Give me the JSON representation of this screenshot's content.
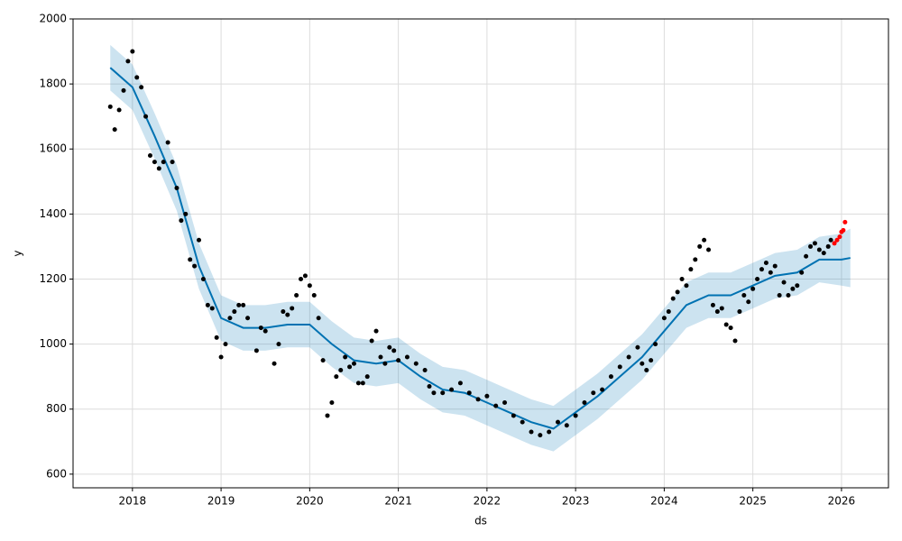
{
  "chart_data": {
    "type": "line",
    "x_label": "ds",
    "y_label": "y",
    "xlim": [
      2017.33,
      2026.53
    ],
    "ylim": [
      558,
      2000
    ],
    "xticks": [
      2018,
      2019,
      2020,
      2021,
      2022,
      2023,
      2024,
      2025,
      2026
    ],
    "yticks": [
      600,
      800,
      1000,
      1200,
      1400,
      1600,
      1800,
      2000
    ],
    "grid": true,
    "series": [
      {
        "mode": "markers",
        "color": "#000000",
        "x": [
          2017.75,
          2017.8,
          2017.85,
          2017.9,
          2017.95,
          2018.0,
          2018.05,
          2018.1,
          2018.15,
          2018.2,
          2018.25,
          2018.3,
          2018.35,
          2018.4,
          2018.45,
          2018.5,
          2018.55,
          2018.6,
          2018.65,
          2018.7,
          2018.75,
          2018.8,
          2018.85,
          2018.9,
          2018.95,
          2019.0,
          2019.05,
          2019.1,
          2019.15,
          2019.2,
          2019.25,
          2019.3,
          2019.4,
          2019.45,
          2019.5,
          2019.6,
          2019.65,
          2019.7,
          2019.75,
          2019.8,
          2019.85,
          2019.9,
          2019.95,
          2020.0,
          2020.05,
          2020.1,
          2020.15,
          2020.2,
          2020.25,
          2020.3,
          2020.35,
          2020.4,
          2020.45,
          2020.5,
          2020.55,
          2020.6,
          2020.65,
          2020.7,
          2020.75,
          2020.8,
          2020.85,
          2020.9,
          2020.95,
          2021.0,
          2021.1,
          2021.2,
          2021.3,
          2021.35,
          2021.4,
          2021.5,
          2021.6,
          2021.7,
          2021.8,
          2021.9,
          2022.0,
          2022.1,
          2022.2,
          2022.3,
          2022.4,
          2022.5,
          2022.6,
          2022.7,
          2022.8,
          2022.9,
          2023.0,
          2023.1,
          2023.2,
          2023.3,
          2023.4,
          2023.5,
          2023.6,
          2023.7,
          2023.75,
          2023.8,
          2023.85,
          2023.9,
          2024.0,
          2024.05,
          2024.1,
          2024.15,
          2024.2,
          2024.25,
          2024.3,
          2024.35,
          2024.4,
          2024.45,
          2024.5,
          2024.55,
          2024.6,
          2024.65,
          2024.7,
          2024.75,
          2024.8,
          2024.85,
          2024.9,
          2024.95,
          2025.0,
          2025.05,
          2025.1,
          2025.15,
          2025.2,
          2025.25,
          2025.3,
          2025.35,
          2025.4,
          2025.45,
          2025.5,
          2025.55,
          2025.6,
          2025.65,
          2025.7,
          2025.75,
          2025.8,
          2025.85,
          2025.88
        ],
        "values": [
          1730,
          1660,
          1720,
          1780,
          1870,
          1900,
          1820,
          1790,
          1700,
          1580,
          1560,
          1540,
          1560,
          1620,
          1560,
          1480,
          1380,
          1400,
          1260,
          1240,
          1320,
          1200,
          1120,
          1110,
          1020,
          960,
          1000,
          1080,
          1100,
          1120,
          1120,
          1080,
          980,
          1050,
          1040,
          940,
          1000,
          1100,
          1090,
          1110,
          1150,
          1200,
          1210,
          1180,
          1150,
          1080,
          950,
          780,
          820,
          900,
          920,
          960,
          930,
          940,
          880,
          880,
          900,
          1010,
          1040,
          960,
          940,
          990,
          980,
          950,
          960,
          940,
          920,
          870,
          850,
          850,
          860,
          880,
          850,
          830,
          840,
          810,
          820,
          780,
          760,
          730,
          720,
          730,
          760,
          750,
          780,
          820,
          850,
          860,
          900,
          930,
          960,
          990,
          940,
          920,
          950,
          1000,
          1080,
          1100,
          1140,
          1160,
          1200,
          1180,
          1230,
          1260,
          1300,
          1320,
          1290,
          1120,
          1100,
          1110,
          1060,
          1050,
          1010,
          1100,
          1150,
          1130,
          1170,
          1200,
          1230,
          1250,
          1220,
          1240,
          1150,
          1190,
          1150,
          1170,
          1180,
          1220,
          1270,
          1300,
          1310,
          1290,
          1280,
          1300,
          1320
        ]
      },
      {
        "mode": "markers",
        "color": "#ff0000",
        "x": [
          2025.92,
          2025.95,
          2025.98,
          2026.0,
          2026.02,
          2026.04
        ],
        "values": [
          1310,
          1320,
          1330,
          1345,
          1350,
          1375
        ]
      },
      {
        "mode": "line",
        "color": "#0072B2",
        "x": [
          2017.75,
          2018.0,
          2018.25,
          2018.5,
          2018.75,
          2019.0,
          2019.25,
          2019.5,
          2019.75,
          2020.0,
          2020.25,
          2020.5,
          2020.75,
          2021.0,
          2021.25,
          2021.5,
          2021.75,
          2022.0,
          2022.25,
          2022.5,
          2022.75,
          2023.0,
          2023.25,
          2023.5,
          2023.75,
          2024.0,
          2024.25,
          2024.5,
          2024.75,
          2025.0,
          2025.25,
          2025.5,
          2025.75,
          2026.0,
          2026.1
        ],
        "values": [
          1850,
          1790,
          1640,
          1480,
          1240,
          1080,
          1050,
          1050,
          1060,
          1060,
          1000,
          950,
          940,
          950,
          900,
          860,
          850,
          820,
          790,
          760,
          740,
          790,
          840,
          900,
          960,
          1040,
          1120,
          1150,
          1150,
          1180,
          1210,
          1220,
          1260,
          1260,
          1265
        ],
        "lower": [
          1780,
          1720,
          1570,
          1410,
          1170,
          1010,
          980,
          980,
          990,
          990,
          930,
          880,
          870,
          880,
          830,
          790,
          780,
          750,
          720,
          690,
          670,
          720,
          770,
          830,
          890,
          970,
          1050,
          1080,
          1080,
          1110,
          1140,
          1150,
          1190,
          1180,
          1175
        ],
        "upper": [
          1920,
          1860,
          1710,
          1550,
          1310,
          1150,
          1120,
          1120,
          1130,
          1130,
          1070,
          1020,
          1010,
          1020,
          970,
          930,
          920,
          890,
          860,
          830,
          810,
          860,
          910,
          970,
          1030,
          1110,
          1190,
          1220,
          1220,
          1250,
          1280,
          1290,
          1330,
          1340,
          1355
        ]
      }
    ]
  }
}
